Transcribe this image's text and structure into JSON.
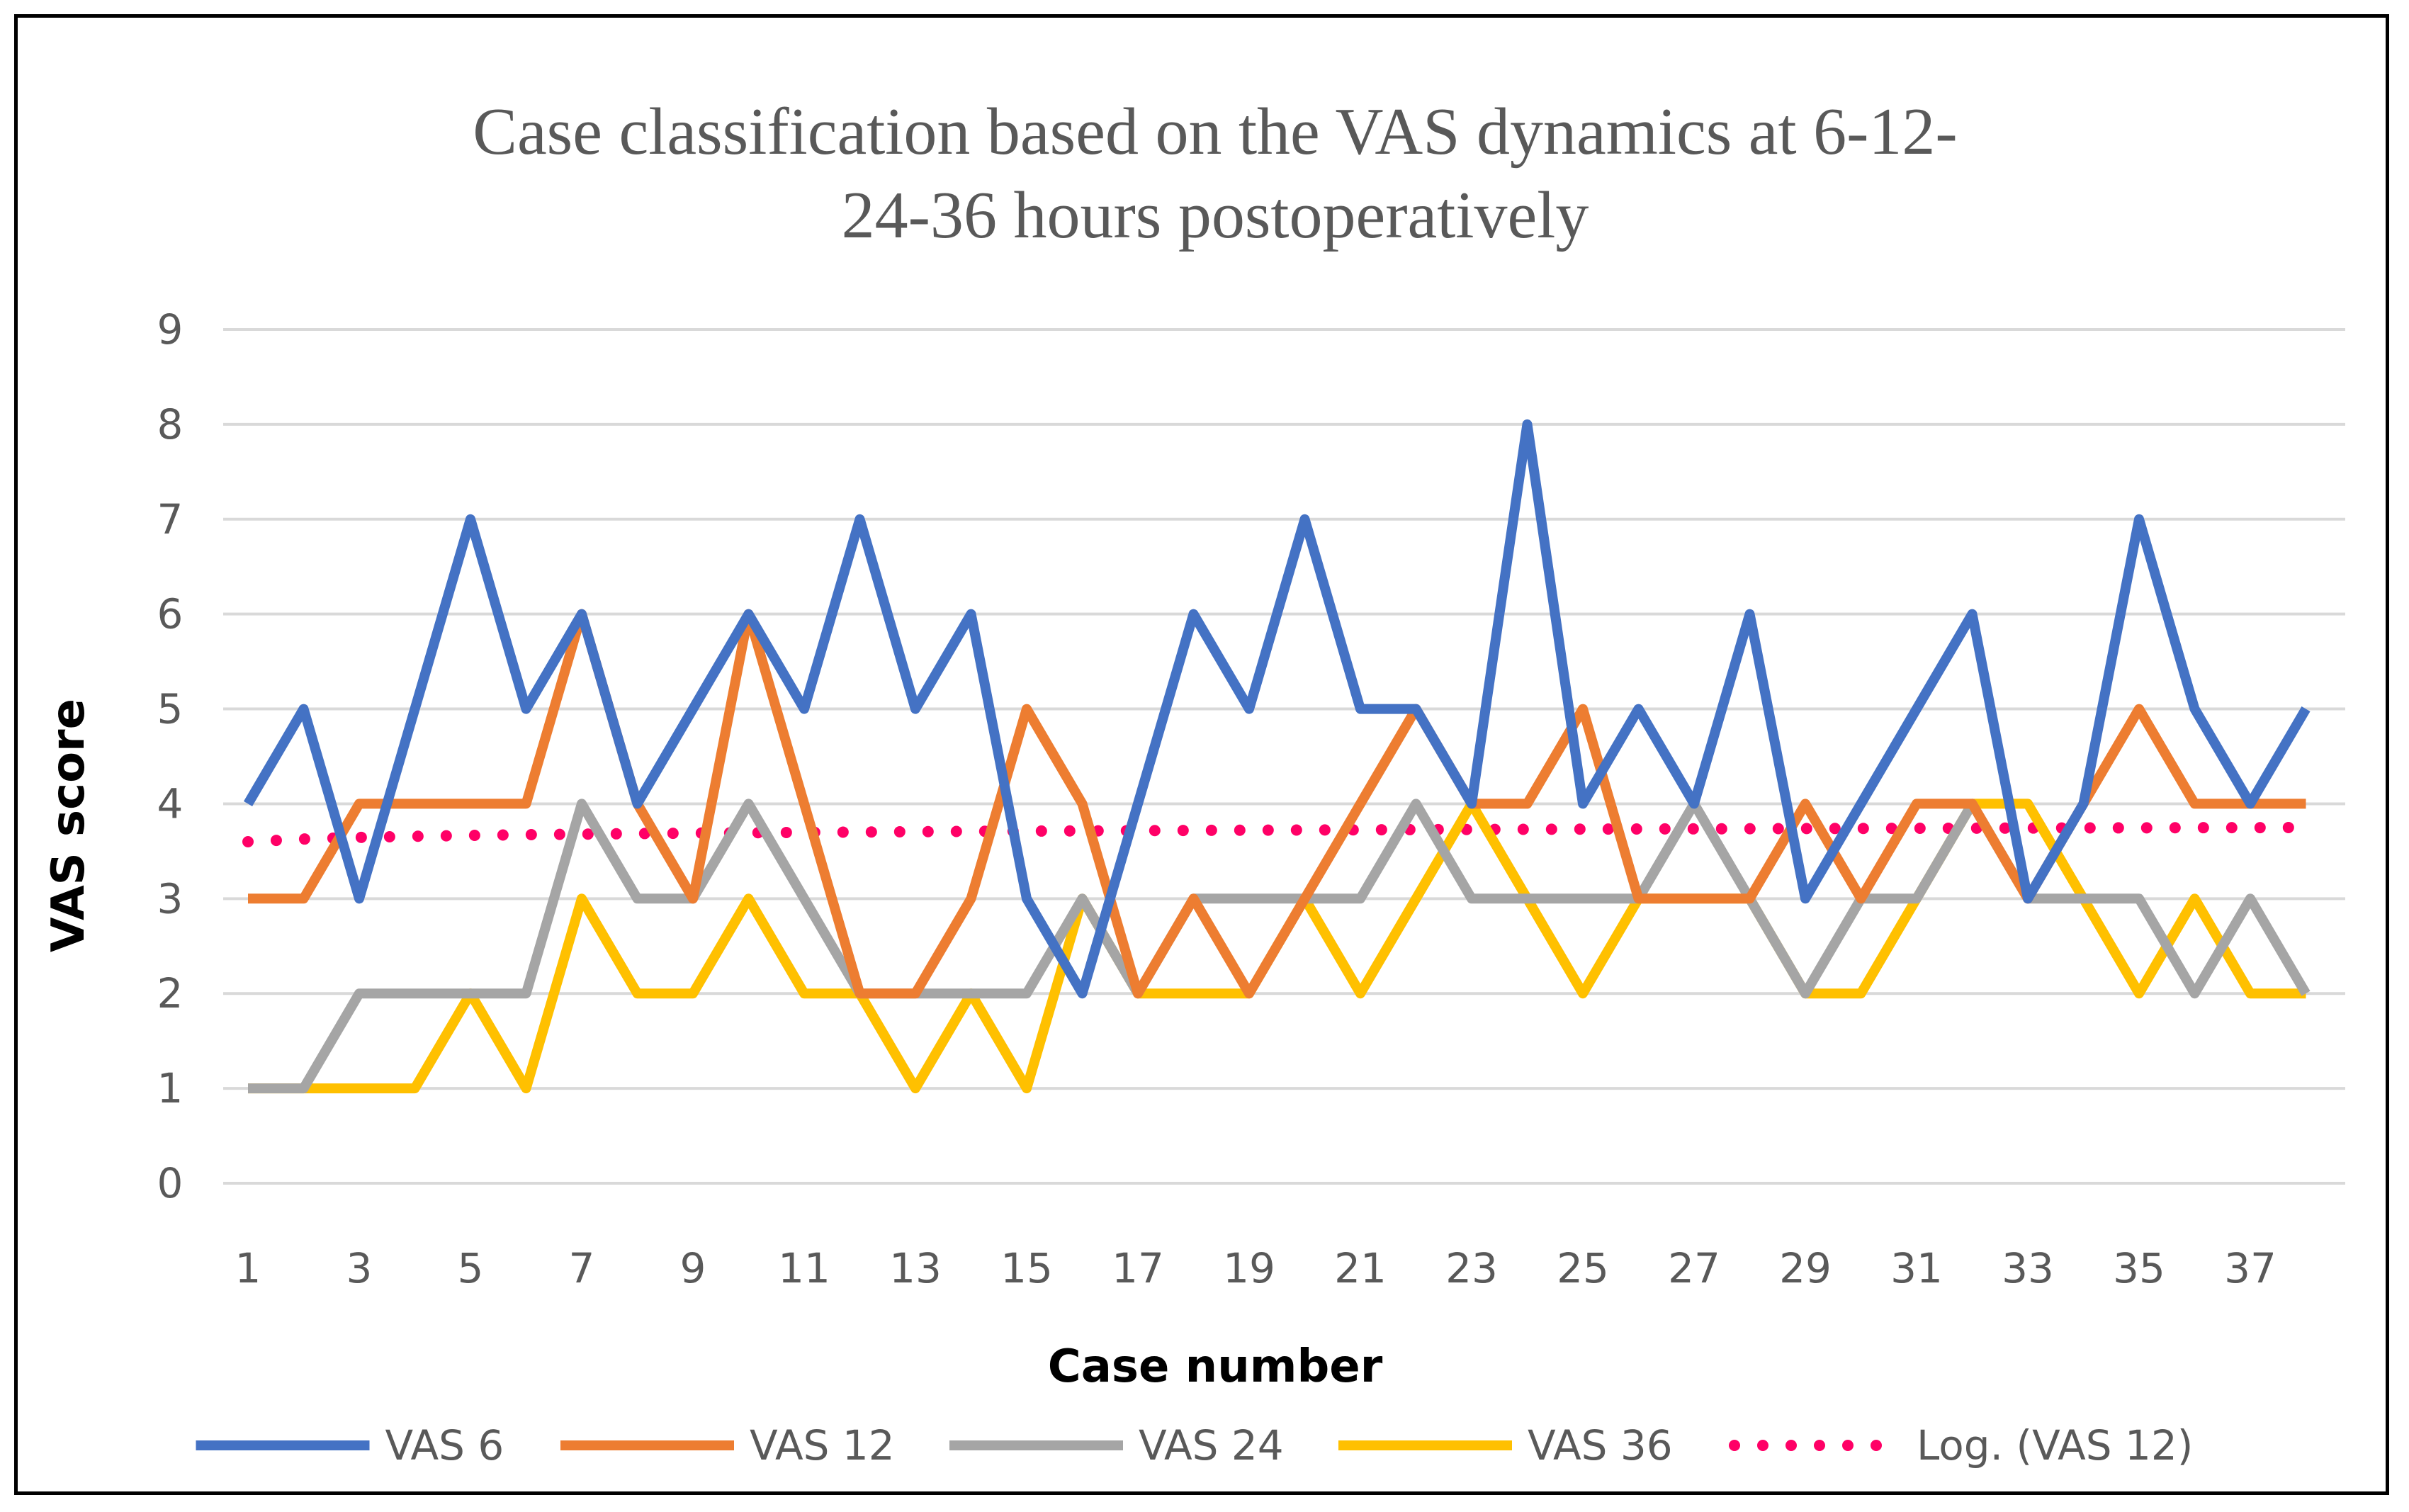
{
  "chart_data": {
    "type": "line",
    "title_lines": [
      "Case classification based on the VAS dynamics at 6-12-",
      "24-36 hours postoperatively"
    ],
    "xlabel": "Case number",
    "ylabel": "VAS score",
    "ylim": [
      0,
      9
    ],
    "y_ticks": [
      "0",
      "1",
      "2",
      "3",
      "4",
      "5",
      "6",
      "7",
      "8",
      "9"
    ],
    "x_tick_labels": [
      "1",
      "3",
      "5",
      "7",
      "9",
      "11",
      "13",
      "15",
      "17",
      "19",
      "21",
      "23",
      "25",
      "27",
      "29",
      "31",
      "33",
      "35",
      "37"
    ],
    "grid": true,
    "legend_position": "bottom",
    "categories": [
      1,
      2,
      3,
      4,
      5,
      6,
      7,
      8,
      9,
      10,
      11,
      12,
      13,
      14,
      15,
      16,
      17,
      18,
      19,
      20,
      21,
      22,
      23,
      24,
      25,
      26,
      27,
      28,
      29,
      30,
      31,
      32,
      33,
      34,
      35,
      36,
      37,
      38
    ],
    "series": [
      {
        "name": "VAS 6",
        "color": "#4472C4",
        "values": [
          4,
          5,
          3,
          5,
          7,
          5,
          6,
          4,
          5,
          6,
          5,
          7,
          5,
          6,
          3,
          2,
          4,
          6,
          5,
          7,
          5,
          5,
          4,
          8,
          4,
          5,
          4,
          6,
          3,
          4,
          5,
          6,
          3,
          4,
          7,
          5,
          4,
          5
        ]
      },
      {
        "name": "VAS 12",
        "color": "#ED7D31",
        "values": [
          3,
          3,
          4,
          4,
          4,
          4,
          6,
          4,
          3,
          6,
          4,
          2,
          2,
          3,
          5,
          4,
          2,
          3,
          2,
          3,
          4,
          5,
          4,
          4,
          5,
          3,
          3,
          3,
          4,
          3,
          4,
          4,
          3,
          4,
          5,
          4,
          4,
          4
        ]
      },
      {
        "name": "VAS 24",
        "color": "#A5A5A5",
        "values": [
          1,
          1,
          2,
          2,
          2,
          2,
          4,
          3,
          3,
          4,
          3,
          2,
          2,
          2,
          2,
          3,
          2,
          3,
          3,
          3,
          3,
          4,
          3,
          3,
          3,
          3,
          4,
          3,
          2,
          3,
          3,
          4,
          3,
          3,
          3,
          2,
          3,
          2
        ]
      },
      {
        "name": "VAS 36",
        "color": "#FFC000",
        "values": [
          1,
          1,
          1,
          1,
          2,
          1,
          3,
          2,
          2,
          3,
          2,
          2,
          1,
          2,
          1,
          3,
          2,
          2,
          2,
          3,
          2,
          3,
          4,
          3,
          2,
          3,
          3,
          3,
          2,
          2,
          3,
          4,
          4,
          3,
          2,
          3,
          2,
          2
        ]
      }
    ],
    "trendline": {
      "name": "Log. (VAS 12)",
      "color": "#FF0066",
      "type": "logarithmic",
      "start": 3.6,
      "end": 3.75
    }
  }
}
